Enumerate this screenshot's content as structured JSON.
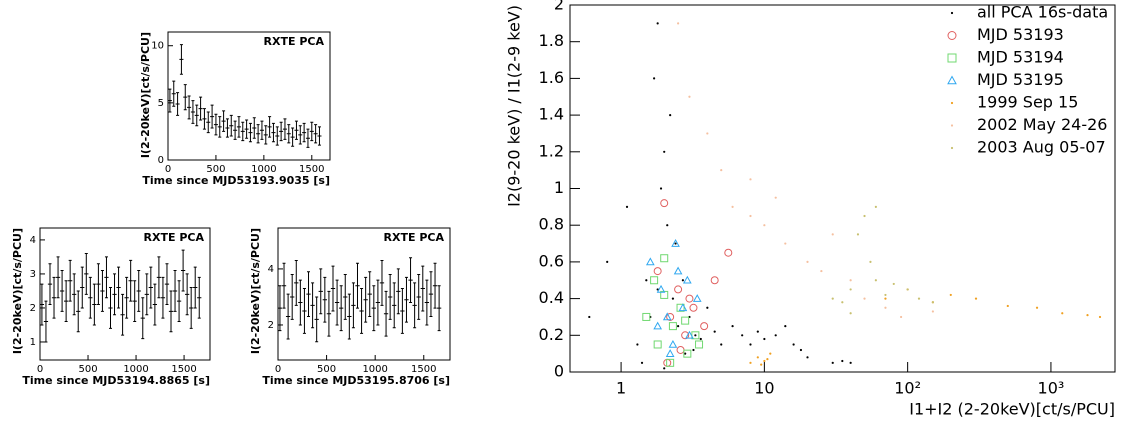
{
  "chart_data": [
    {
      "type": "errorbar",
      "annotation": "RXTE PCA",
      "xlabel": "Time since MJD53193.9035 [s]",
      "ylabel": "I(2-20keV)[ct/s/PCU]",
      "xlim": [
        0,
        1690
      ],
      "xticks": [
        0,
        500,
        1000,
        1500
      ],
      "ylim": [
        0,
        11.2
      ],
      "yticks": [
        0,
        5,
        10
      ],
      "color": "#000000",
      "x": [
        20,
        60,
        100,
        140,
        180,
        220,
        260,
        300,
        340,
        380,
        420,
        460,
        500,
        540,
        580,
        620,
        660,
        700,
        740,
        780,
        820,
        860,
        900,
        940,
        980,
        1020,
        1060,
        1100,
        1140,
        1180,
        1220,
        1260,
        1300,
        1340,
        1380,
        1420,
        1460,
        1500,
        1540,
        1580
      ],
      "values": [
        5.2,
        5.8,
        4.9,
        8.8,
        5.5,
        4.6,
        4.2,
        3.9,
        4.5,
        3.6,
        3.3,
        3.8,
        3.1,
        2.9,
        3.4,
        2.8,
        3.0,
        2.6,
        2.9,
        2.5,
        2.7,
        2.4,
        2.8,
        2.3,
        2.6,
        2.2,
        2.9,
        2.4,
        2.1,
        2.5,
        2.7,
        2.3,
        2.0,
        2.6,
        2.2,
        2.4,
        1.9,
        2.5,
        2.3,
        2.1
      ],
      "errors": [
        1.0,
        1.1,
        1.0,
        1.3,
        1.1,
        1.0,
        1.0,
        0.9,
        1.0,
        0.9,
        0.9,
        1.0,
        0.9,
        0.9,
        0.9,
        0.8,
        0.9,
        0.8,
        0.9,
        0.8,
        0.8,
        0.8,
        0.9,
        0.8,
        0.8,
        0.8,
        0.9,
        0.8,
        0.8,
        0.8,
        0.9,
        0.8,
        0.8,
        0.8,
        0.8,
        0.8,
        0.8,
        0.8,
        0.8,
        0.8
      ]
    },
    {
      "type": "errorbar",
      "annotation": "RXTE PCA",
      "xlabel": "Time since MJD53194.8865 [s]",
      "ylabel": "I(2-20keV)[ct/s/PCU]",
      "xlim": [
        0,
        1770
      ],
      "xticks": [
        0,
        500,
        1000,
        1500
      ],
      "ylim": [
        0.47,
        4.35
      ],
      "yticks": [
        1,
        2,
        3,
        4
      ],
      "color": "#000000",
      "x": [
        20,
        62,
        104,
        146,
        188,
        230,
        272,
        314,
        356,
        398,
        440,
        482,
        524,
        566,
        608,
        650,
        692,
        734,
        776,
        818,
        860,
        902,
        944,
        986,
        1028,
        1070,
        1112,
        1154,
        1196,
        1238,
        1280,
        1322,
        1364,
        1406,
        1448,
        1490,
        1532,
        1574,
        1616,
        1658
      ],
      "values": [
        2.1,
        1.6,
        2.7,
        2.3,
        2.9,
        2.5,
        2.2,
        2.8,
        2.4,
        1.9,
        2.6,
        3.0,
        2.3,
        2.1,
        2.7,
        2.5,
        2.9,
        2.0,
        2.4,
        2.6,
        1.8,
        2.3,
        2.8,
        2.2,
        2.5,
        1.7,
        2.4,
        2.6,
        2.1,
        2.9,
        2.3,
        2.7,
        1.9,
        2.5,
        2.2,
        3.1,
        2.4,
        2.0,
        2.6,
        2.3
      ],
      "errors": [
        0.6,
        0.6,
        0.6,
        0.6,
        0.6,
        0.6,
        0.6,
        0.6,
        0.6,
        0.6,
        0.6,
        0.6,
        0.6,
        0.6,
        0.6,
        0.6,
        0.6,
        0.6,
        0.6,
        0.6,
        0.6,
        0.6,
        0.6,
        0.6,
        0.6,
        0.6,
        0.6,
        0.6,
        0.6,
        0.6,
        0.6,
        0.6,
        0.6,
        0.6,
        0.6,
        0.6,
        0.6,
        0.6,
        0.6,
        0.6
      ]
    },
    {
      "type": "errorbar",
      "annotation": "RXTE PCA",
      "xlabel": "Time since MJD53195.8706 [s]",
      "ylabel": "I(2-20keV)[ct/s/PCU]",
      "xlim": [
        0,
        1770
      ],
      "xticks": [
        0,
        500,
        1000,
        1500
      ],
      "ylim": [
        0.75,
        5.46
      ],
      "yticks": [
        2,
        4
      ],
      "color": "#000000",
      "x": [
        20,
        62,
        104,
        146,
        188,
        230,
        272,
        314,
        356,
        398,
        440,
        482,
        524,
        566,
        608,
        650,
        692,
        734,
        776,
        818,
        860,
        902,
        944,
        986,
        1028,
        1070,
        1112,
        1154,
        1196,
        1238,
        1280,
        1322,
        1364,
        1406,
        1448,
        1490,
        1532,
        1574,
        1616,
        1658
      ],
      "values": [
        2.6,
        3.4,
        2.3,
        3.0,
        3.5,
        2.8,
        2.5,
        3.1,
        2.7,
        2.2,
        3.2,
        2.9,
        2.4,
        3.3,
        2.8,
        2.6,
        3.0,
        2.3,
        2.7,
        3.4,
        2.5,
        2.9,
        3.1,
        2.6,
        2.8,
        3.5,
        2.4,
        3.0,
        2.7,
        3.2,
        2.5,
        2.9,
        3.6,
        2.7,
        3.0,
        3.3,
        2.8,
        3.1,
        3.4,
        2.6
      ],
      "errors": [
        0.8,
        0.8,
        0.8,
        0.8,
        0.8,
        0.8,
        0.8,
        0.8,
        0.8,
        0.8,
        0.8,
        0.8,
        0.8,
        0.8,
        0.8,
        0.8,
        0.8,
        0.8,
        0.8,
        0.8,
        0.8,
        0.8,
        0.8,
        0.8,
        0.8,
        0.8,
        0.8,
        0.8,
        0.8,
        0.8,
        0.8,
        0.8,
        0.8,
        0.8,
        0.8,
        0.8,
        0.8,
        0.8,
        0.8,
        0.8
      ]
    },
    {
      "type": "scatter",
      "xlabel": "I1+I2 (2-20keV)[ct/s/PCU]",
      "ylabel": "I2(9-20 keV) / I1(2-9 keV)",
      "xscale": "log",
      "legend": "upper right",
      "xlim": [
        0.44,
        2800
      ],
      "xticks": [
        1,
        10,
        {
          "value": 100,
          "label": "10²"
        },
        {
          "value": 1000,
          "label": "10³"
        }
      ],
      "ylim": [
        0,
        2
      ],
      "yticks": [
        0,
        0.2,
        0.4,
        0.6,
        0.8,
        1,
        1.2,
        1.4,
        1.6,
        1.8,
        2
      ],
      "series": [
        {
          "name": "all PCA 16s-data",
          "color": "#000000",
          "marker": "dot",
          "x": [
            0.6,
            0.8,
            1.1,
            1.3,
            1.5,
            1.7,
            1.8,
            2.0,
            2.1,
            2.3,
            2.5,
            2.7,
            3.0,
            3.3,
            3.6,
            4.0,
            4.5,
            5.0,
            6,
            7,
            8,
            9,
            10,
            12,
            14,
            16,
            18,
            20,
            30,
            35,
            40,
            2.2,
            1.9,
            2.4,
            1.6,
            2.8,
            3.2,
            1.4,
            2.0,
            1.8
          ],
          "values": [
            0.3,
            0.6,
            0.9,
            0.15,
            0.5,
            1.6,
            1.9,
            1.2,
            0.8,
            0.4,
            0.25,
            0.5,
            0.3,
            0.2,
            0.18,
            0.35,
            0.22,
            0.15,
            0.25,
            0.2,
            0.15,
            0.22,
            0.18,
            0.2,
            0.25,
            0.15,
            0.12,
            0.08,
            0.05,
            0.06,
            0.05,
            1.4,
            1.0,
            0.7,
            0.3,
            0.1,
            0.12,
            0.05,
            0.02,
            0.45
          ]
        },
        {
          "name": "MJD 53193",
          "color": "#e06060",
          "marker": "circle",
          "x": [
            1.8,
            2.0,
            2.2,
            2.5,
            2.8,
            3.2,
            3.8,
            4.5,
            5.6,
            2.1,
            2.6,
            3.0
          ],
          "values": [
            0.55,
            0.92,
            0.3,
            0.45,
            0.2,
            0.35,
            0.25,
            0.5,
            0.65,
            0.05,
            0.12,
            0.4
          ]
        },
        {
          "name": "MJD 53194",
          "color": "#70d870",
          "marker": "square",
          "x": [
            1.5,
            1.8,
            2.0,
            2.3,
            2.6,
            2.9,
            3.3,
            1.7,
            2.2,
            2.8,
            3.5,
            2.0
          ],
          "values": [
            0.3,
            0.15,
            0.42,
            0.25,
            0.35,
            0.1,
            0.2,
            0.5,
            0.05,
            0.28,
            0.15,
            0.62
          ]
        },
        {
          "name": "MJD 53195",
          "color": "#30a8f0",
          "marker": "triangle",
          "x": [
            1.6,
            1.9,
            2.1,
            2.4,
            2.7,
            3.0,
            3.4,
            2.2,
            2.5,
            1.8,
            2.9,
            2.3
          ],
          "values": [
            0.6,
            0.45,
            0.3,
            0.7,
            0.35,
            0.2,
            0.4,
            0.1,
            0.55,
            0.25,
            0.5,
            0.15
          ]
        },
        {
          "name": "1999 Sep 15",
          "color": "#f0a020",
          "marker": "dot",
          "x": [
            8,
            9,
            10,
            11,
            9.5,
            10.5,
            70,
            100,
            150,
            200,
            300,
            500,
            800,
            1200,
            1800,
            2200
          ],
          "values": [
            0.05,
            0.08,
            0.06,
            0.1,
            0.04,
            0.07,
            0.4,
            0.45,
            0.38,
            0.42,
            0.4,
            0.36,
            0.35,
            0.32,
            0.31,
            0.3
          ]
        },
        {
          "name": "2002 May 24-26",
          "color": "#f5c0a0",
          "marker": "dot",
          "x": [
            2.5,
            3,
            4,
            5,
            6,
            8,
            10,
            14,
            20,
            25,
            30,
            40,
            50,
            70,
            90,
            150,
            8,
            12
          ],
          "values": [
            1.9,
            1.5,
            1.3,
            1.1,
            0.9,
            0.85,
            0.8,
            0.7,
            0.6,
            0.55,
            0.75,
            0.5,
            0.4,
            0.35,
            0.3,
            0.33,
            1.05,
            0.95
          ]
        },
        {
          "name": "2003 Aug 05-07",
          "color": "#c8c070",
          "marker": "dot",
          "x": [
            30,
            35,
            40,
            45,
            50,
            55,
            60,
            70,
            80,
            100,
            120,
            150,
            40,
            60
          ],
          "values": [
            0.4,
            0.38,
            0.45,
            0.75,
            0.85,
            0.6,
            0.5,
            0.42,
            0.48,
            0.45,
            0.4,
            0.38,
            0.32,
            0.9
          ]
        }
      ]
    }
  ]
}
